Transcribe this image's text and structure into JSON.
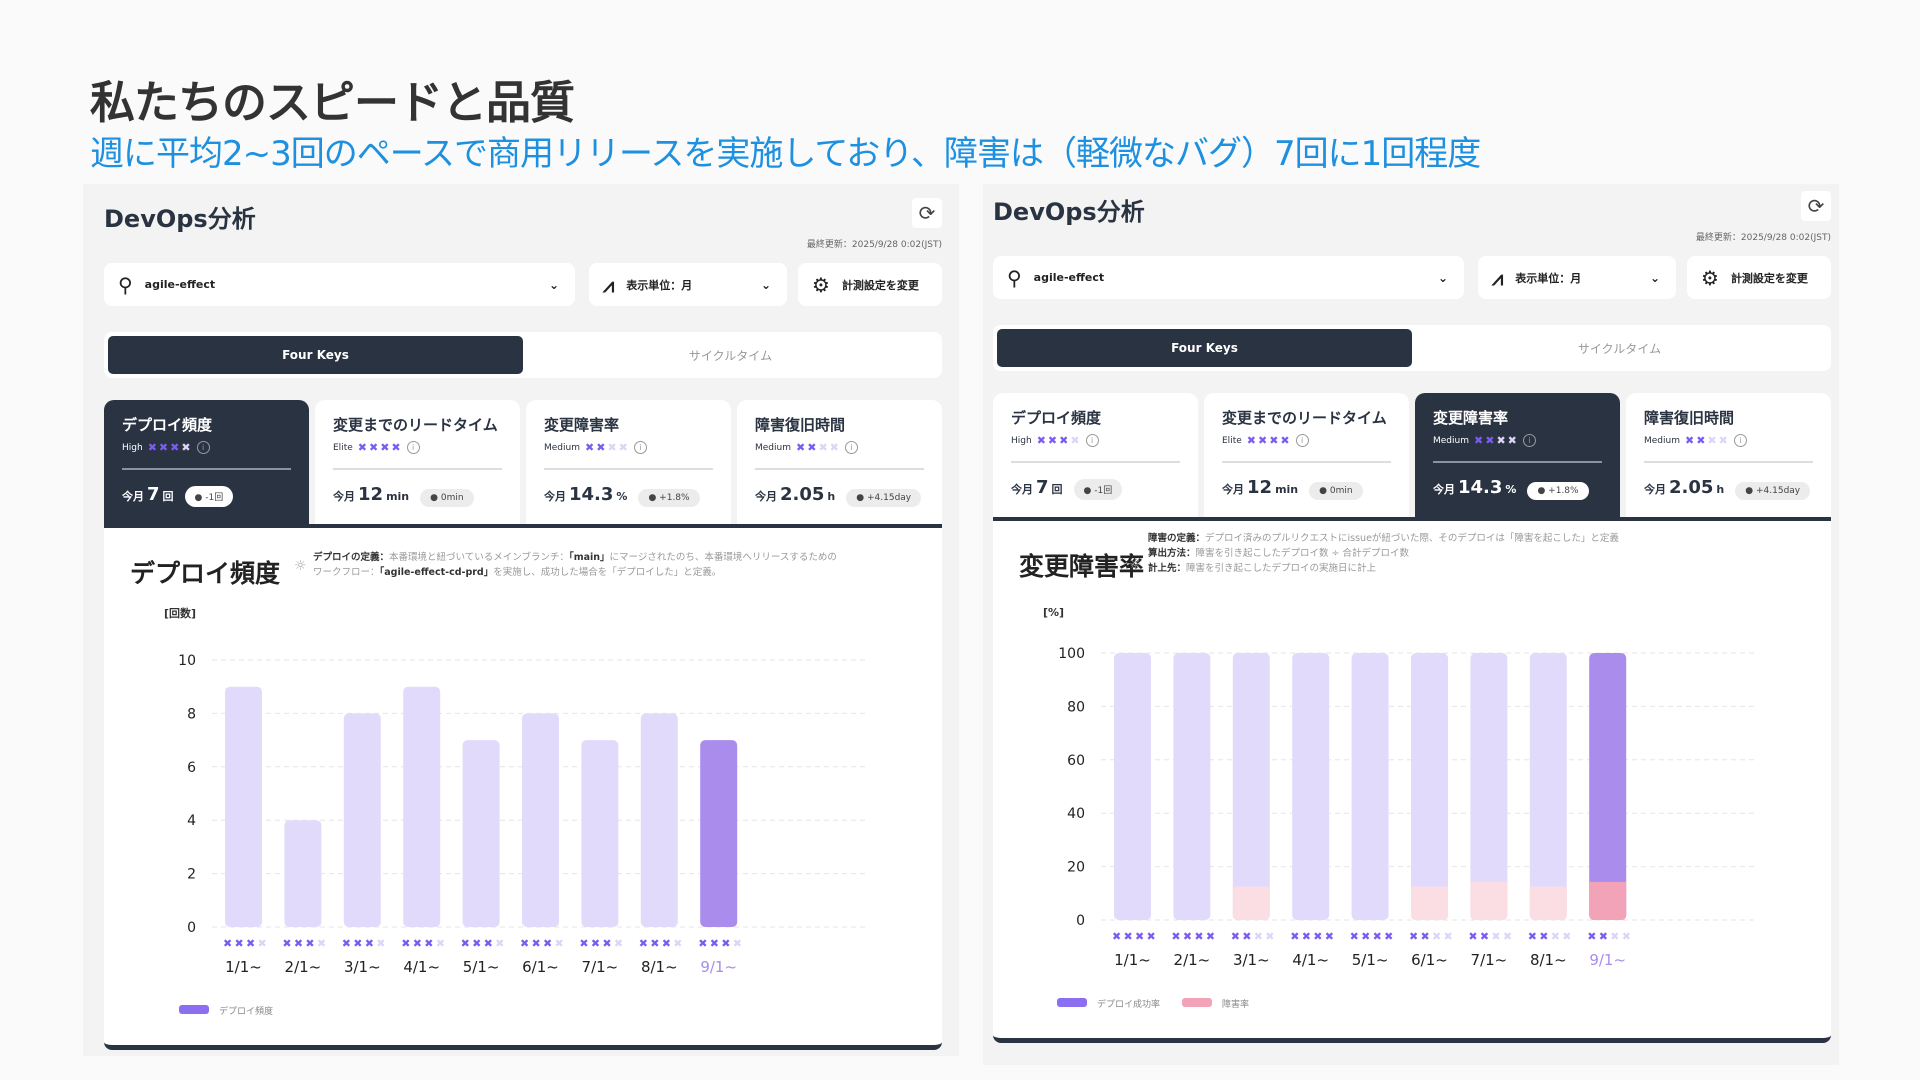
{
  "page": {
    "title": "私たちのスピードと品質",
    "subtitle": "週に平均2~3回のペースで商用リリースを実施しており、障害は（軽微なバグ）7回に1回程度"
  },
  "colors": {
    "accent": "#1e90e0",
    "dark": "#2a3342",
    "bar_light": "#e2dafa",
    "bar_highlight": "#a98cec",
    "fail_light": "#fbdde4",
    "fail_highlight": "#f3a3b8",
    "star_on": "#7b5cf0",
    "star_off": "#ddd5f7"
  },
  "panels": [
    {
      "title": "DevOps分析",
      "last_updated": "最終更新：2025/9/28 0:02(JST)",
      "search_value": "agile-effect",
      "unit_select": "表示単位：月",
      "settings_label": "計測設定を変更",
      "tabs": [
        {
          "label": "Four Keys",
          "active": true
        },
        {
          "label": "サイクルタイム",
          "active": false
        }
      ],
      "selected_card": 0,
      "cards": [
        {
          "title": "デプロイ頻度",
          "level": "High",
          "stars": 3,
          "prefix": "今月",
          "value": "7",
          "unit": "回",
          "badge": "-1回"
        },
        {
          "title": "変更までのリードタイム",
          "level": "Elite",
          "stars": 4,
          "prefix": "今月",
          "value": "12",
          "unit": "min",
          "badge": "0min"
        },
        {
          "title": "変更障害率",
          "level": "Medium",
          "stars": 2,
          "prefix": "今月",
          "value": "14.3",
          "unit": "%",
          "badge": "+1.8%"
        },
        {
          "title": "障害復旧時間",
          "level": "Medium",
          "stars": 2,
          "prefix": "今月",
          "value": "2.05",
          "unit": "h",
          "badge": "+4.15day"
        }
      ],
      "detail": {
        "title": "デプロイ頻度",
        "definition": [
          [
            {
              "b": true,
              "t": "デプロイの定義："
            },
            {
              "t": "本番環境と紐づいているメインブランチ："
            },
            {
              "b": true,
              "t": "「main」"
            },
            {
              "t": "にマージされたのち、本番環境へリリースするための"
            }
          ],
          [
            {
              "t": "ワークフロー："
            },
            {
              "b": true,
              "t": "「agile-effect-cd-prd」"
            },
            {
              "t": "を実施し、成功した場合を「デプロイした」と定義。"
            }
          ]
        ]
      }
    },
    {
      "title": "DevOps分析",
      "last_updated": "最終更新：2025/9/28 0:02(JST)",
      "search_value": "agile-effect",
      "unit_select": "表示単位：月",
      "settings_label": "計測設定を変更",
      "tabs": [
        {
          "label": "Four Keys",
          "active": true
        },
        {
          "label": "サイクルタイム",
          "active": false
        }
      ],
      "selected_card": 2,
      "cards": [
        {
          "title": "デプロイ頻度",
          "level": "High",
          "stars": 3,
          "prefix": "今月",
          "value": "7",
          "unit": "回",
          "badge": "-1回"
        },
        {
          "title": "変更までのリードタイム",
          "level": "Elite",
          "stars": 4,
          "prefix": "今月",
          "value": "12",
          "unit": "min",
          "badge": "0min"
        },
        {
          "title": "変更障害率",
          "level": "Medium",
          "stars": 2,
          "prefix": "今月",
          "value": "14.3",
          "unit": "%",
          "badge": "+1.8%"
        },
        {
          "title": "障害復旧時間",
          "level": "Medium",
          "stars": 2,
          "prefix": "今月",
          "value": "2.05",
          "unit": "h",
          "badge": "+4.15day"
        }
      ],
      "detail": {
        "title": "変更障害率",
        "definition": [
          [
            {
              "b": true,
              "t": "障害の定義："
            },
            {
              "t": "デプロイ済みのプルリクエストにissueが紐づいた際、そのデプロイは「障害を起こした」と定義"
            }
          ],
          [
            {
              "b": true,
              "t": "算出方法："
            },
            {
              "t": "障害を引き起こしたデプロイ数 ÷ 合計デプロイ数"
            }
          ],
          [
            {
              "b": true,
              "t": "計上先："
            },
            {
              "t": "障害を引き起こしたデプロイの実施日に計上"
            }
          ]
        ]
      }
    }
  ],
  "chart_data": [
    {
      "type": "bar",
      "ylabel": "[回数]",
      "categories": [
        "1/1~",
        "2/1~",
        "3/1~",
        "4/1~",
        "5/1~",
        "6/1~",
        "7/1~",
        "8/1~",
        "9/1~"
      ],
      "series": [
        {
          "name": "デプロイ頻度",
          "values": [
            9,
            4,
            8,
            9,
            7,
            8,
            7,
            8,
            7
          ]
        }
      ],
      "ratings": [
        3,
        3,
        3,
        3,
        3,
        3,
        3,
        3,
        3
      ],
      "ylim": [
        0,
        10
      ],
      "yticks": [
        0,
        2,
        4,
        6,
        8,
        10
      ],
      "highlight_index": 8,
      "grid": true,
      "legend": "bottom-left"
    },
    {
      "type": "bar",
      "stacked": true,
      "ylabel": "[%]",
      "categories": [
        "1/1~",
        "2/1~",
        "3/1~",
        "4/1~",
        "5/1~",
        "6/1~",
        "7/1~",
        "8/1~",
        "9/1~"
      ],
      "series": [
        {
          "name": "デプロイ成功率",
          "values": [
            100,
            100,
            87.5,
            100,
            100,
            87.5,
            85.7,
            87.5,
            85.7
          ]
        },
        {
          "name": "障害率",
          "values": [
            0,
            0,
            12.5,
            0,
            0,
            12.5,
            14.3,
            12.5,
            14.3
          ]
        }
      ],
      "ratings": [
        4,
        4,
        2,
        4,
        4,
        2,
        2,
        2,
        2
      ],
      "ylim": [
        0,
        100
      ],
      "yticks": [
        0,
        20,
        40,
        60,
        80,
        100
      ],
      "highlight_index": 8,
      "grid": true,
      "legend": "bottom-left"
    }
  ]
}
